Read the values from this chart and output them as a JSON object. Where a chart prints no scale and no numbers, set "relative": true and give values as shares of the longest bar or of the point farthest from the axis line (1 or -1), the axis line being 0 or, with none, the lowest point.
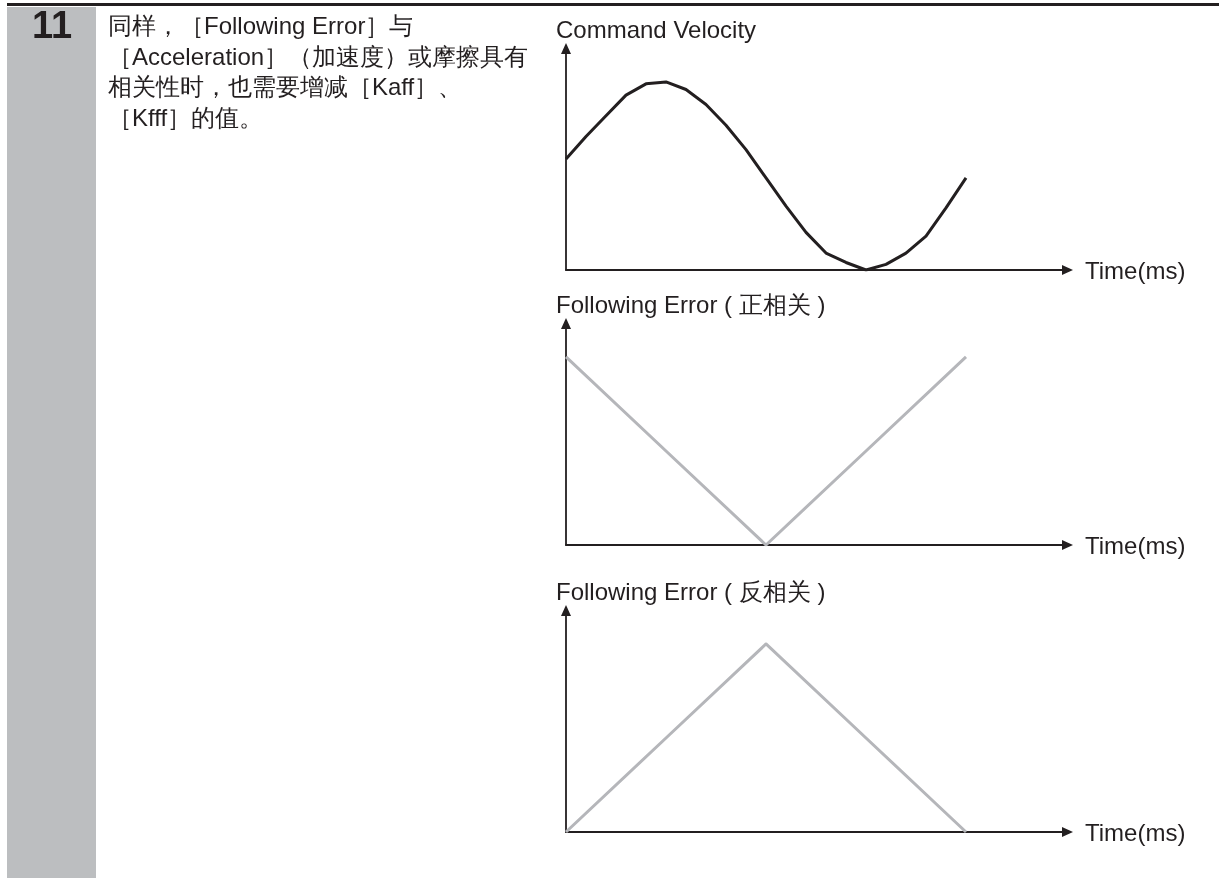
{
  "chart_data": [
    {
      "type": "other",
      "title": "11",
      "annotations": [
        "同样，［Following Error］与［Acceleration］（加速度）或摩擦具有相关性时，也需要增减［Kaff］、［Kfff］的值。"
      ]
    },
    {
      "type": "line",
      "ylabel": "Command Velocity",
      "xlabel": "Time(ms)",
      "relative": true,
      "categories": [
        null,
        null,
        null,
        null,
        null,
        null,
        null,
        null,
        null,
        null,
        null,
        null,
        null,
        null,
        null,
        null,
        null,
        null,
        null,
        null,
        null,
        null,
        null,
        null,
        null,
        null
      ],
      "series": [
        {
          "color": "#231f20",
          "values": [
            0.59,
            0.71,
            0.82,
            0.93,
            0.99,
            1,
            0.96,
            0.88,
            0.77,
            0.64,
            0.49,
            0.34,
            0.2,
            0.09,
            0.04,
            0,
            0.03,
            0.09,
            0.18,
            0.33,
            0.49,
            null,
            null,
            null,
            null,
            null
          ]
        }
      ]
    },
    {
      "type": "line",
      "ylabel": "Following Error ( 正相关 )",
      "xlabel": "Time(ms)",
      "relative": true,
      "categories": [
        null,
        null,
        null,
        null,
        null,
        null
      ],
      "series": [
        {
          "color": "#b5b6ba",
          "values": [
            1,
            0.5,
            0,
            0.5,
            1,
            null
          ]
        }
      ]
    },
    {
      "type": "line",
      "ylabel": "Following Error ( 反相关 )",
      "xlabel": "Time(ms)",
      "relative": true,
      "categories": [
        null,
        null,
        null,
        null,
        null,
        null
      ],
      "series": [
        {
          "color": "#b5b6ba",
          "values": [
            0,
            0.5,
            1,
            0.5,
            0,
            null
          ]
        }
      ]
    }
  ]
}
